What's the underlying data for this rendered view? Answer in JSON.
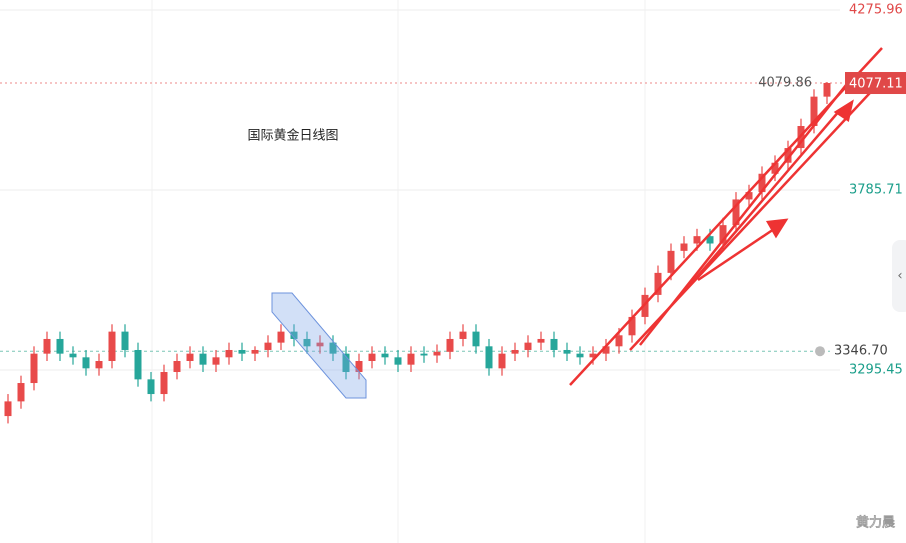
{
  "chart_data": {
    "type": "candlestick",
    "title": "国际黄金日线图",
    "watermark": "黄力晨",
    "ylim": [
      2824.3,
      4303.2
    ],
    "yticks": [
      4275.96,
      3785.71,
      3295.45
    ],
    "ytick_colors": [
      "#e04848",
      "#1a9e8a",
      "#1a9e8a"
    ],
    "grid": true,
    "up_color": "#e84a4a",
    "down_color": "#26a69a",
    "price_line": 4077.11,
    "high_marker": 4079.86,
    "alert_line": {
      "value": 3346.7,
      "label": "3346.70"
    },
    "series": [
      {
        "open": [
          3170,
          3210,
          3260,
          3340,
          3380,
          3340,
          3330,
          3300,
          3320,
          3400,
          3350,
          3270,
          3230,
          3290,
          3320,
          3340,
          3310,
          3330,
          3350,
          3340,
          3350,
          3370,
          3400,
          3380,
          3360,
          3370,
          3340,
          3290,
          3320,
          3340,
          3330,
          3310,
          3340,
          3335,
          3345,
          3380,
          3400,
          3360,
          3300,
          3340,
          3350,
          3370,
          3380,
          3350,
          3340,
          3330,
          3340,
          3360,
          3390,
          3440,
          3500,
          3560,
          3620,
          3640,
          3660,
          3640,
          3690,
          3760,
          3780,
          3830,
          3860,
          3900,
          3960,
          4040
        ],
        "high": [
          3230,
          3280,
          3360,
          3400,
          3400,
          3360,
          3350,
          3340,
          3420,
          3420,
          3370,
          3290,
          3310,
          3340,
          3360,
          3360,
          3350,
          3370,
          3370,
          3360,
          3390,
          3420,
          3420,
          3400,
          3390,
          3390,
          3360,
          3340,
          3360,
          3360,
          3350,
          3360,
          3360,
          3365,
          3400,
          3420,
          3420,
          3380,
          3360,
          3370,
          3390,
          3400,
          3400,
          3370,
          3360,
          3360,
          3380,
          3410,
          3460,
          3520,
          3580,
          3640,
          3660,
          3680,
          3680,
          3710,
          3780,
          3800,
          3850,
          3880,
          3920,
          3980,
          4060,
          4079.86
        ],
        "low": [
          3150,
          3190,
          3240,
          3320,
          3320,
          3310,
          3280,
          3280,
          3300,
          3330,
          3250,
          3210,
          3210,
          3270,
          3300,
          3290,
          3290,
          3310,
          3320,
          3320,
          3330,
          3350,
          3360,
          3340,
          3340,
          3320,
          3270,
          3270,
          3300,
          3310,
          3290,
          3290,
          3315,
          3315,
          3325,
          3360,
          3340,
          3280,
          3280,
          3320,
          3330,
          3350,
          3330,
          3320,
          3310,
          3310,
          3320,
          3340,
          3370,
          3420,
          3480,
          3540,
          3600,
          3620,
          3620,
          3620,
          3670,
          3740,
          3760,
          3810,
          3840,
          3880,
          3940,
          4020
        ],
        "close": [
          3210,
          3260,
          3340,
          3380,
          3340,
          3330,
          3300,
          3320,
          3400,
          3350,
          3270,
          3230,
          3290,
          3320,
          3340,
          3310,
          3330,
          3350,
          3340,
          3350,
          3370,
          3400,
          3380,
          3360,
          3370,
          3340,
          3290,
          3320,
          3340,
          3330,
          3310,
          3340,
          3335,
          3345,
          3380,
          3400,
          3360,
          3300,
          3340,
          3350,
          3370,
          3380,
          3350,
          3340,
          3330,
          3340,
          3360,
          3390,
          3440,
          3500,
          3560,
          3620,
          3640,
          3660,
          3640,
          3690,
          3760,
          3780,
          3830,
          3860,
          3900,
          3960,
          4040,
          4077.11
        ]
      }
    ]
  }
}
